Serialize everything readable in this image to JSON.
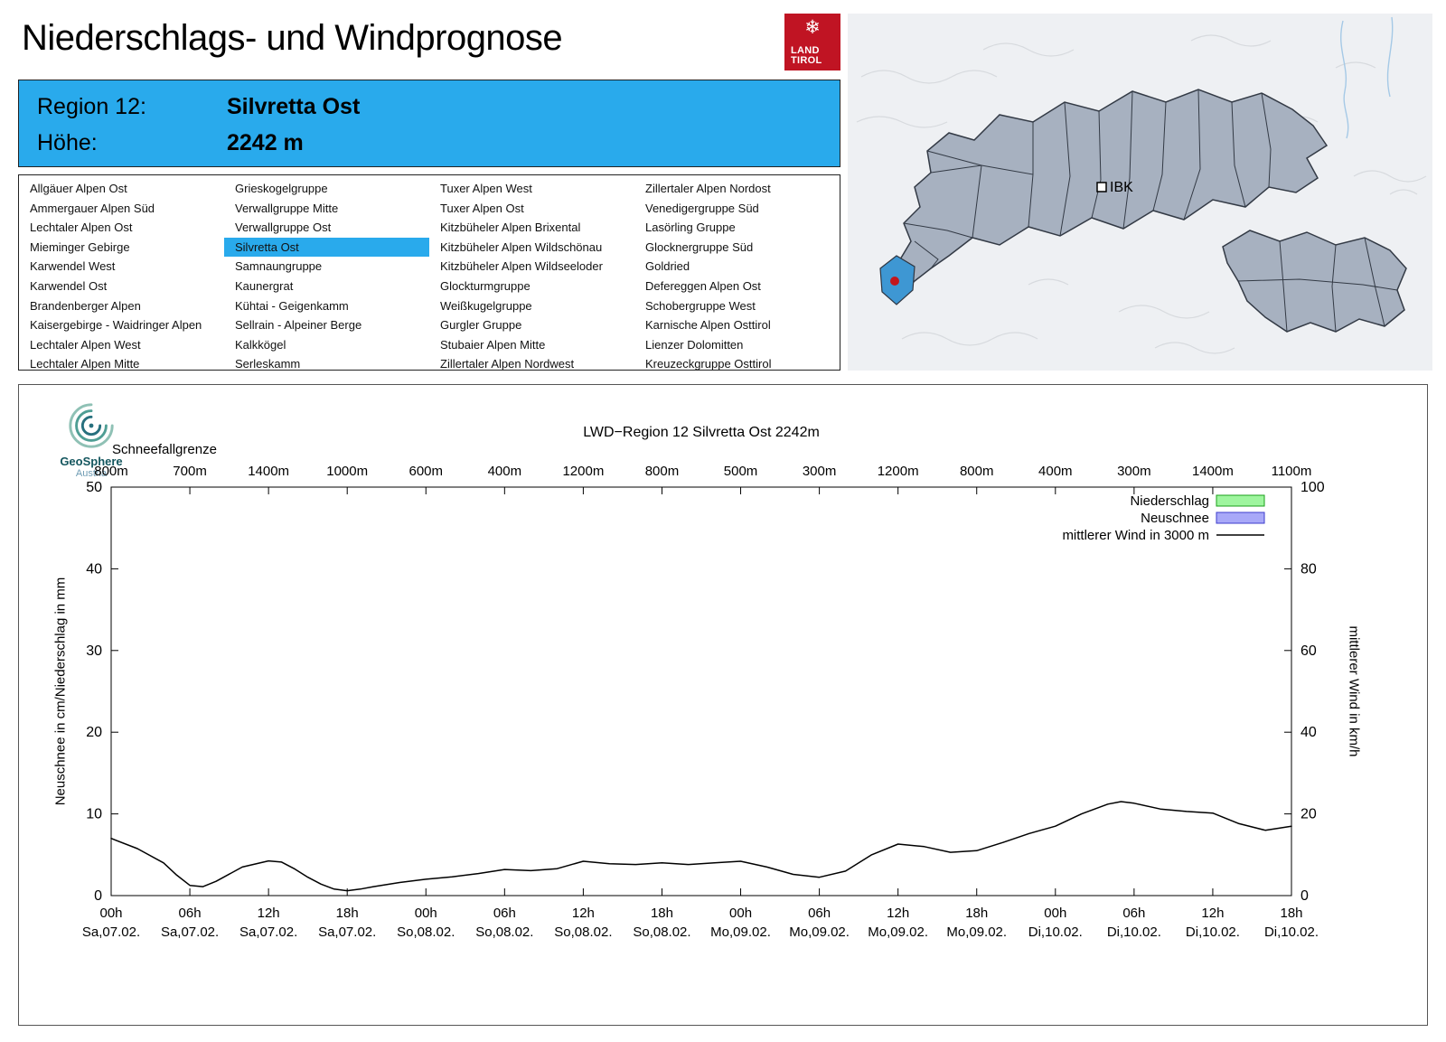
{
  "page": {
    "title": "Niederschlags- und Windprognose"
  },
  "logo": {
    "line1": "LAND",
    "line2": "TIROL"
  },
  "map": {
    "marker_label": "IBK",
    "colors": {
      "region_fill": "#a7b1c0",
      "highlight": "#3e97d3",
      "marker_red": "#c4161c"
    }
  },
  "region_header": {
    "region_label": "Region 12:",
    "region_value": "Silvretta Ost",
    "elevation_label": "Höhe:",
    "elevation_value": "2242 m",
    "accent_color": "#29aaec"
  },
  "region_list": {
    "selected": "Silvretta Ost",
    "columns": [
      [
        "Allgäuer Alpen Ost",
        "Ammergauer Alpen Süd",
        "Lechtaler Alpen Ost",
        "Mieminger Gebirge",
        "Karwendel West",
        "Karwendel Ost",
        "Brandenberger Alpen",
        "Kaisergebirge - Waidringer Alpen",
        "Lechtaler Alpen West",
        "Lechtaler Alpen Mitte"
      ],
      [
        "Grieskogelgruppe",
        "Verwallgruppe Mitte",
        "Verwallgruppe Ost",
        "Silvretta Ost",
        "Samnaungruppe",
        "Kaunergrat",
        "Kühtai - Geigenkamm",
        "Sellrain - Alpeiner Berge",
        "Kalkkögel",
        "Serleskamm"
      ],
      [
        "Tuxer Alpen West",
        "Tuxer Alpen Ost",
        "Kitzbüheler Alpen Brixental",
        "Kitzbüheler Alpen Wildschönau",
        "Kitzbüheler Alpen Wildseeloder",
        "Glockturmgruppe",
        "Weißkugelgruppe",
        "Gurgler Gruppe",
        "Stubaier Alpen Mitte",
        "Zillertaler Alpen Nordwest"
      ],
      [
        "Zillertaler Alpen Nordost",
        "Venedigergruppe Süd",
        "Lasörling Gruppe",
        "Glocknergruppe Süd",
        "Goldried",
        "Defereggen Alpen Ost",
        "Schobergruppe West",
        "Karnische Alpen Osttirol",
        "Lienzer Dolomitten",
        "Kreuzeckgruppe Osttirol"
      ]
    ]
  },
  "geosphere": {
    "name": "GeoSphere",
    "sub": "Austria"
  },
  "chart_data": {
    "type": "line",
    "title": "LWD−Region 12 Silvretta Ost 2242m",
    "top_axis_label": "Schneefallgrenze",
    "top_axis_ticks": [
      "800m",
      "700m",
      "1400m",
      "1000m",
      "600m",
      "400m",
      "1200m",
      "800m",
      "500m",
      "300m",
      "1200m",
      "800m",
      "400m",
      "300m",
      "1400m",
      "1100m"
    ],
    "xlim_hours": [
      0,
      90
    ],
    "x_tick_positions_hours": [
      0,
      6,
      12,
      18,
      24,
      30,
      36,
      42,
      48,
      54,
      60,
      66,
      72,
      78,
      84,
      90
    ],
    "x_tick_hours": [
      "00h",
      "06h",
      "12h",
      "18h",
      "00h",
      "06h",
      "12h",
      "18h",
      "00h",
      "06h",
      "12h",
      "18h",
      "00h",
      "06h",
      "12h",
      "18h"
    ],
    "x_tick_dates": [
      "Sa,07.02.",
      "Sa,07.02.",
      "Sa,07.02.",
      "Sa,07.02.",
      "So,08.02.",
      "So,08.02.",
      "So,08.02.",
      "So,08.02.",
      "Mo,09.02.",
      "Mo,09.02.",
      "Mo,09.02.",
      "Mo,09.02.",
      "Di,10.02.",
      "Di,10.02.",
      "Di,10.02.",
      "Di,10.02."
    ],
    "ylabel_left": "Neuschnee in cm/Niederschlag in mm",
    "ylabel_right": "mittlerer Wind in km/h",
    "ylim_left": [
      0,
      50
    ],
    "ylim_right": [
      0,
      100
    ],
    "y_ticks_left": [
      0,
      10,
      20,
      30,
      40,
      50
    ],
    "y_ticks_right": [
      0,
      20,
      40,
      60,
      80,
      100
    ],
    "legend": [
      {
        "label": "Niederschlag",
        "type": "box",
        "color": "#9ef59e",
        "border": "#1ba01b"
      },
      {
        "label": "Neuschnee",
        "type": "box",
        "color": "#a8a8f8",
        "border": "#3c3ccc"
      },
      {
        "label": "mittlerer Wind in 3000 m",
        "type": "line",
        "color": "#000000"
      }
    ],
    "niederschlag_values": [],
    "neuschnee_values": [],
    "series": [
      {
        "name": "mittlerer Wind in 3000 m",
        "axis": "right",
        "unit": "km/h",
        "x_hours": [
          0,
          2,
          4,
          5,
          6,
          7,
          8,
          10,
          12,
          13,
          14,
          15,
          16,
          17,
          18,
          19,
          20,
          22,
          24,
          26,
          28,
          30,
          32,
          34,
          36,
          38,
          40,
          42,
          44,
          46,
          48,
          50,
          52,
          54,
          56,
          58,
          60,
          62,
          64,
          66,
          68,
          70,
          72,
          74,
          76,
          77,
          78,
          80,
          82,
          84,
          86,
          88,
          90
        ],
        "values": [
          14,
          11.5,
          8,
          5,
          2.5,
          2.2,
          3.5,
          7,
          8.5,
          8.2,
          6.5,
          4.5,
          2.8,
          1.6,
          1.2,
          1.6,
          2.2,
          3.2,
          4,
          4.6,
          5.4,
          6.4,
          6.1,
          6.6,
          8.4,
          7.8,
          7.6,
          8,
          7.6,
          8,
          8.4,
          7,
          5.2,
          4.5,
          6,
          10,
          12.6,
          12,
          10.6,
          11,
          13,
          15.2,
          17,
          20,
          22.4,
          23,
          22.6,
          21.2,
          20.6,
          20.2,
          17.6,
          16,
          17
        ]
      }
    ]
  }
}
